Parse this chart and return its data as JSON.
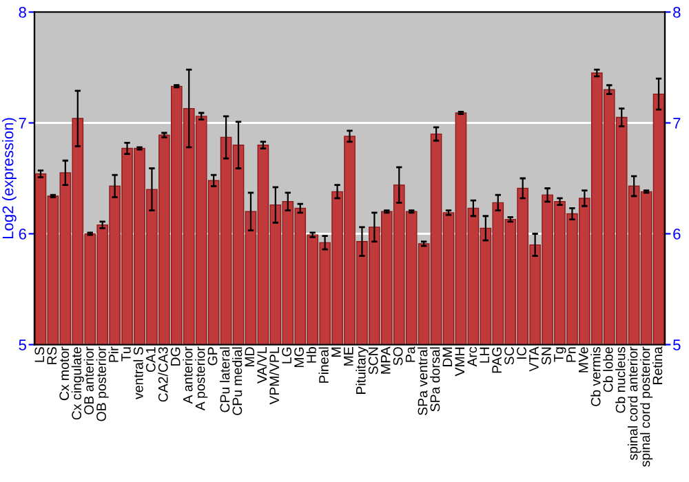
{
  "chart_data": {
    "type": "bar",
    "ylabel": "Log2 (expression)",
    "categories": [
      "LS",
      "RS",
      "Cx motor",
      "Cx cingulate",
      "OB anterior",
      "OB posterior",
      "Pir",
      "Tu",
      "ventral S",
      "CA1",
      "CA2/CA3",
      "DG",
      "A anterior",
      "A posterior",
      "GP",
      "CPu lateral",
      "CPu medial",
      "MD",
      "VA/VL",
      "VPM/VPL",
      "LG",
      "MG",
      "Hb",
      "Pineal",
      "M",
      "ME",
      "Pituitary",
      "SCN",
      "MPA",
      "SO",
      "Pa",
      "SPa ventral",
      "SPa dorsal",
      "DM",
      "VMH",
      "Arc",
      "LH",
      "PAG",
      "SC",
      "IC",
      "VTA",
      "SN",
      "Tg",
      "Pn",
      "MVe",
      "Cb vermis",
      "Cb lobe",
      "Cb nucleus",
      "spinal cord anterior",
      "spinal cord posterior",
      "Retina"
    ],
    "series": [
      {
        "color": "#c0393b",
        "values": [
          6.54,
          6.34,
          6.55,
          7.04,
          6.0,
          6.08,
          6.43,
          6.77,
          6.77,
          6.4,
          6.89,
          7.33,
          7.13,
          7.06,
          6.48,
          6.87,
          6.8,
          6.2,
          6.8,
          6.26,
          6.29,
          6.23,
          5.99,
          5.92,
          6.38,
          6.88,
          5.93,
          6.06,
          6.2,
          6.44,
          6.2,
          5.91,
          6.9,
          6.19,
          7.09,
          6.23,
          6.05,
          6.28,
          6.13,
          6.41,
          5.9,
          6.35,
          6.29,
          6.18,
          6.32,
          7.45,
          7.3,
          7.05,
          6.43,
          6.38,
          7.26
        ],
        "errors": [
          0.03,
          0.01,
          0.11,
          0.25,
          0.01,
          0.03,
          0.1,
          0.05,
          0.01,
          0.19,
          0.02,
          0.01,
          0.35,
          0.03,
          0.05,
          0.19,
          0.21,
          0.17,
          0.03,
          0.16,
          0.08,
          0.04,
          0.02,
          0.06,
          0.06,
          0.05,
          0.13,
          0.13,
          0.01,
          0.16,
          0.01,
          0.02,
          0.06,
          0.02,
          0.01,
          0.07,
          0.11,
          0.07,
          0.02,
          0.09,
          0.1,
          0.06,
          0.03,
          0.05,
          0.07,
          0.03,
          0.04,
          0.08,
          0.09,
          0.01,
          0.14
        ]
      }
    ],
    "ylim": [
      5,
      8
    ],
    "yticks": [
      5,
      6,
      7,
      8
    ],
    "y2lim": [
      5,
      8
    ],
    "y2ticks": [
      5,
      6,
      7,
      8
    ],
    "grid": "y"
  }
}
